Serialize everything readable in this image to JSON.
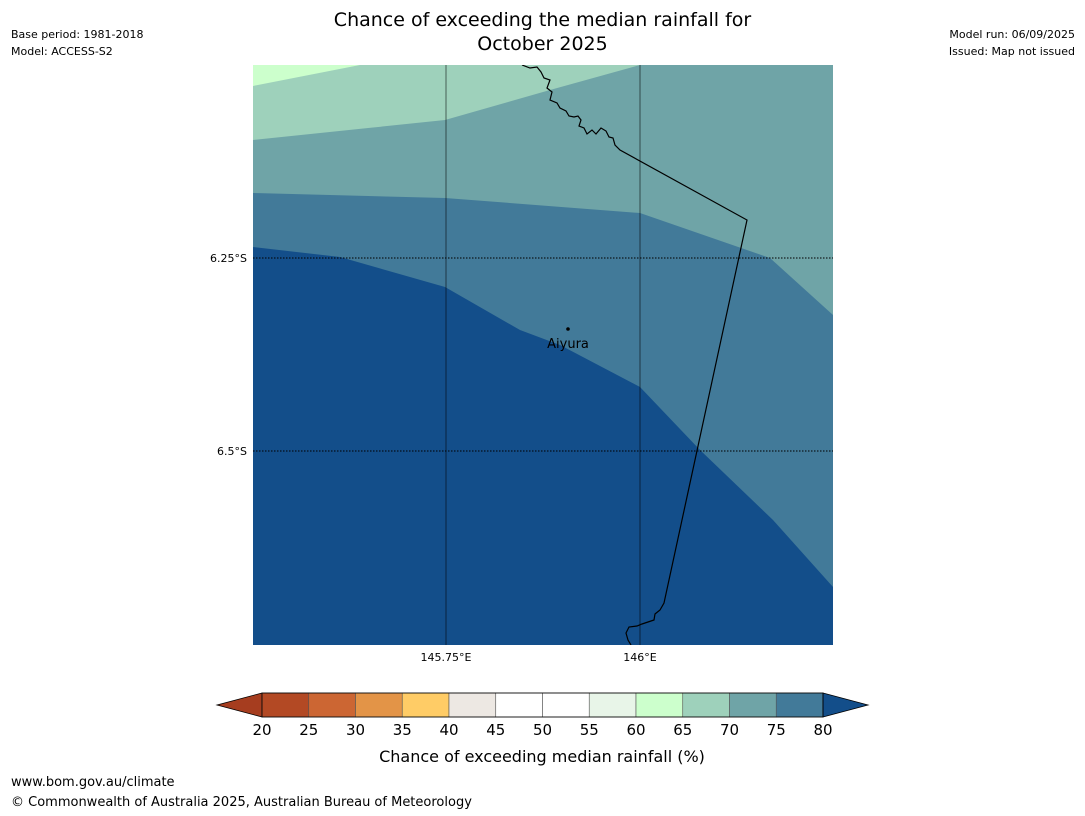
{
  "title": "Chance of exceeding the median rainfall for\nOctober 2025",
  "meta_left": {
    "base_period": "Base period: 1981-2018",
    "model": "Model: ACCESS-S2"
  },
  "meta_right": {
    "model_run": "Model run: 06/09/2025",
    "issued": "Issued: Map not issued"
  },
  "map": {
    "lat_labels": [
      "6.25°S",
      "6.5°S"
    ],
    "lon_labels": [
      "145.75°E",
      "146°E"
    ],
    "place_label": "Aiyura",
    "colors": {
      "band_65_70": "#ccffcc",
      "band_70_75": "#9ed1bb",
      "band_75_80": "#6fa4a7",
      "band_80_plus_light": "#427a99",
      "band_80_plus_dark": "#134e8a",
      "gridline": "#000000",
      "border": "#000000"
    }
  },
  "colorbar": {
    "ticks": [
      "20",
      "25",
      "30",
      "35",
      "40",
      "45",
      "50",
      "55",
      "60",
      "65",
      "70",
      "75",
      "80"
    ],
    "colors": [
      "#a63d1f",
      "#b34924",
      "#cc6633",
      "#e39447",
      "#ffcc66",
      "#ede8e3",
      "#ffffff",
      "#ffffff",
      "#e8f5e8",
      "#ccffcc",
      "#9ed1bb",
      "#6fa4a7",
      "#427a99",
      "#134e8a"
    ],
    "label": "Chance of exceeding median rainfall (%)"
  },
  "footer": {
    "url": "www.bom.gov.au/climate",
    "copyright": "© Commonwealth of Australia 2025, Australian Bureau of Meteorology"
  }
}
